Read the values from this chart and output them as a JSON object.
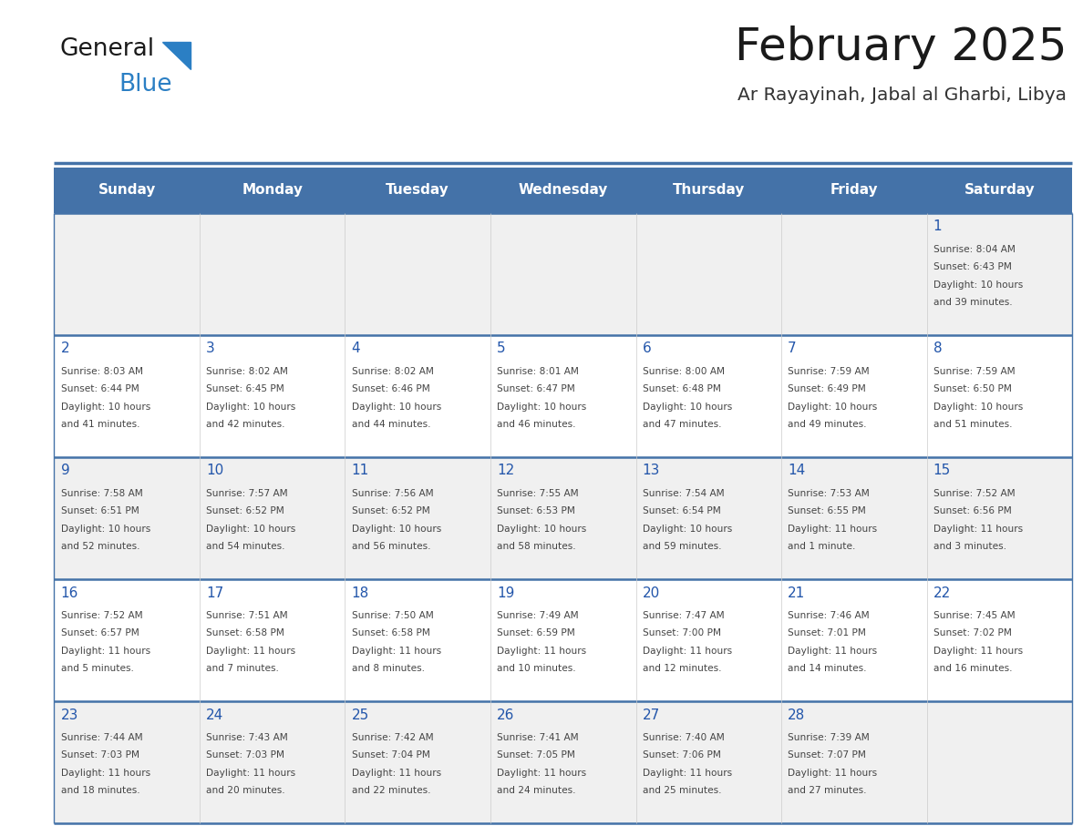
{
  "title": "February 2025",
  "subtitle": "Ar Rayayinah, Jabal al Gharbi, Libya",
  "header_bg": "#4472a8",
  "header_text": "#ffffff",
  "row_bg_even": "#f0f0f0",
  "row_bg_odd": "#ffffff",
  "separator_color": "#4472a8",
  "day_headers": [
    "Sunday",
    "Monday",
    "Tuesday",
    "Wednesday",
    "Thursday",
    "Friday",
    "Saturday"
  ],
  "days": [
    {
      "day": 1,
      "col": 6,
      "row": 0,
      "sunrise": "8:04 AM",
      "sunset": "6:43 PM",
      "daylight": "10 hours and 39 minutes."
    },
    {
      "day": 2,
      "col": 0,
      "row": 1,
      "sunrise": "8:03 AM",
      "sunset": "6:44 PM",
      "daylight": "10 hours and 41 minutes."
    },
    {
      "day": 3,
      "col": 1,
      "row": 1,
      "sunrise": "8:02 AM",
      "sunset": "6:45 PM",
      "daylight": "10 hours and 42 minutes."
    },
    {
      "day": 4,
      "col": 2,
      "row": 1,
      "sunrise": "8:02 AM",
      "sunset": "6:46 PM",
      "daylight": "10 hours and 44 minutes."
    },
    {
      "day": 5,
      "col": 3,
      "row": 1,
      "sunrise": "8:01 AM",
      "sunset": "6:47 PM",
      "daylight": "10 hours and 46 minutes."
    },
    {
      "day": 6,
      "col": 4,
      "row": 1,
      "sunrise": "8:00 AM",
      "sunset": "6:48 PM",
      "daylight": "10 hours and 47 minutes."
    },
    {
      "day": 7,
      "col": 5,
      "row": 1,
      "sunrise": "7:59 AM",
      "sunset": "6:49 PM",
      "daylight": "10 hours and 49 minutes."
    },
    {
      "day": 8,
      "col": 6,
      "row": 1,
      "sunrise": "7:59 AM",
      "sunset": "6:50 PM",
      "daylight": "10 hours and 51 minutes."
    },
    {
      "day": 9,
      "col": 0,
      "row": 2,
      "sunrise": "7:58 AM",
      "sunset": "6:51 PM",
      "daylight": "10 hours and 52 minutes."
    },
    {
      "day": 10,
      "col": 1,
      "row": 2,
      "sunrise": "7:57 AM",
      "sunset": "6:52 PM",
      "daylight": "10 hours and 54 minutes."
    },
    {
      "day": 11,
      "col": 2,
      "row": 2,
      "sunrise": "7:56 AM",
      "sunset": "6:52 PM",
      "daylight": "10 hours and 56 minutes."
    },
    {
      "day": 12,
      "col": 3,
      "row": 2,
      "sunrise": "7:55 AM",
      "sunset": "6:53 PM",
      "daylight": "10 hours and 58 minutes."
    },
    {
      "day": 13,
      "col": 4,
      "row": 2,
      "sunrise": "7:54 AM",
      "sunset": "6:54 PM",
      "daylight": "10 hours and 59 minutes."
    },
    {
      "day": 14,
      "col": 5,
      "row": 2,
      "sunrise": "7:53 AM",
      "sunset": "6:55 PM",
      "daylight": "11 hours and 1 minute."
    },
    {
      "day": 15,
      "col": 6,
      "row": 2,
      "sunrise": "7:52 AM",
      "sunset": "6:56 PM",
      "daylight": "11 hours and 3 minutes."
    },
    {
      "day": 16,
      "col": 0,
      "row": 3,
      "sunrise": "7:52 AM",
      "sunset": "6:57 PM",
      "daylight": "11 hours and 5 minutes."
    },
    {
      "day": 17,
      "col": 1,
      "row": 3,
      "sunrise": "7:51 AM",
      "sunset": "6:58 PM",
      "daylight": "11 hours and 7 minutes."
    },
    {
      "day": 18,
      "col": 2,
      "row": 3,
      "sunrise": "7:50 AM",
      "sunset": "6:58 PM",
      "daylight": "11 hours and 8 minutes."
    },
    {
      "day": 19,
      "col": 3,
      "row": 3,
      "sunrise": "7:49 AM",
      "sunset": "6:59 PM",
      "daylight": "11 hours and 10 minutes."
    },
    {
      "day": 20,
      "col": 4,
      "row": 3,
      "sunrise": "7:47 AM",
      "sunset": "7:00 PM",
      "daylight": "11 hours and 12 minutes."
    },
    {
      "day": 21,
      "col": 5,
      "row": 3,
      "sunrise": "7:46 AM",
      "sunset": "7:01 PM",
      "daylight": "11 hours and 14 minutes."
    },
    {
      "day": 22,
      "col": 6,
      "row": 3,
      "sunrise": "7:45 AM",
      "sunset": "7:02 PM",
      "daylight": "11 hours and 16 minutes."
    },
    {
      "day": 23,
      "col": 0,
      "row": 4,
      "sunrise": "7:44 AM",
      "sunset": "7:03 PM",
      "daylight": "11 hours and 18 minutes."
    },
    {
      "day": 24,
      "col": 1,
      "row": 4,
      "sunrise": "7:43 AM",
      "sunset": "7:03 PM",
      "daylight": "11 hours and 20 minutes."
    },
    {
      "day": 25,
      "col": 2,
      "row": 4,
      "sunrise": "7:42 AM",
      "sunset": "7:04 PM",
      "daylight": "11 hours and 22 minutes."
    },
    {
      "day": 26,
      "col": 3,
      "row": 4,
      "sunrise": "7:41 AM",
      "sunset": "7:05 PM",
      "daylight": "11 hours and 24 minutes."
    },
    {
      "day": 27,
      "col": 4,
      "row": 4,
      "sunrise": "7:40 AM",
      "sunset": "7:06 PM",
      "daylight": "11 hours and 25 minutes."
    },
    {
      "day": 28,
      "col": 5,
      "row": 4,
      "sunrise": "7:39 AM",
      "sunset": "7:07 PM",
      "daylight": "11 hours and 27 minutes."
    }
  ],
  "num_rows": 5,
  "num_cols": 7,
  "fig_width": 11.88,
  "fig_height": 9.18,
  "logo_text_general": "General",
  "logo_text_blue": "Blue",
  "logo_color_general": "#1a1a1a",
  "logo_color_blue": "#2b7fc4",
  "logo_triangle_color": "#2b7fc4"
}
